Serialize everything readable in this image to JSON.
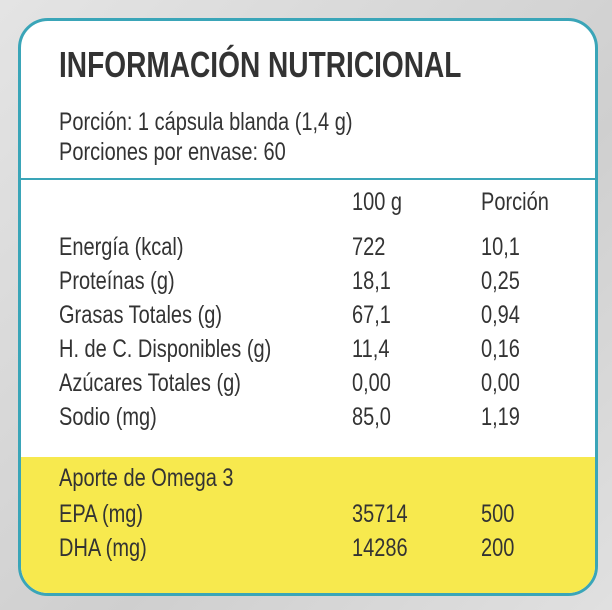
{
  "header": {
    "title": "INFORMACIÓN NUTRICIONAL",
    "serving": "Porción: 1 cápsula blanda (1,4 g)",
    "servings_per_container": "Porciones por envase: 60"
  },
  "table": {
    "columns": [
      "100 g",
      "Porción"
    ],
    "rows": [
      [
        "Energía (kcal)",
        "722",
        "10,1"
      ],
      [
        "Proteínas (g)",
        "18,1",
        "0,25"
      ],
      [
        "Grasas Totales (g)",
        "67,1",
        "0,94"
      ],
      [
        "H. de C. Disponibles (g)",
        "11,4",
        "0,16"
      ],
      [
        "Azúcares Totales (g)",
        "0,00",
        "0,00"
      ],
      [
        "Sodio (mg)",
        "85,0",
        "1,19"
      ]
    ]
  },
  "omega": {
    "title": "Aporte de Omega 3",
    "rows": [
      [
        "EPA (mg)",
        "35714",
        "500"
      ],
      [
        "DHA (mg)",
        "14286",
        "200"
      ]
    ]
  }
}
